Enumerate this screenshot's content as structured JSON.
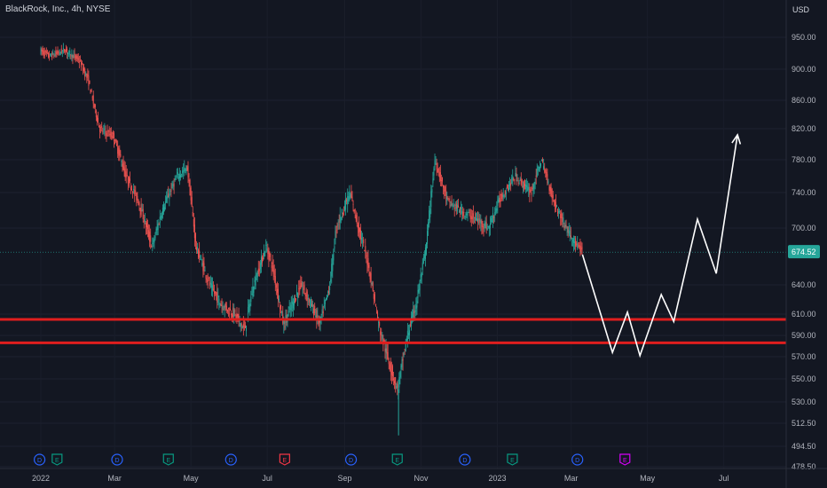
{
  "header": {
    "title": "BlackRock, Inc., 4h, NYSE",
    "currency": "USD"
  },
  "colors": {
    "background": "#131722",
    "up": "#26a69a",
    "down": "#ef5350",
    "support": "#e01e1e",
    "projection": "#ffffff",
    "price_label_bg": "#26a69a",
    "dividend": "#2962ff",
    "earnings": "#089981",
    "earnings_alt": "#f23645",
    "earnings_upcoming": "#d500f9"
  },
  "chart_data": {
    "type": "candlestick",
    "y_axis_labels": [
      "950.00",
      "900.00",
      "860.00",
      "820.00",
      "780.00",
      "740.00",
      "700.00",
      "674.52",
      "640.00",
      "610.00",
      "590.00",
      "570.00",
      "550.00",
      "530.00",
      "512.50",
      "494.50",
      "478.50"
    ],
    "y_ticks": [
      950,
      900,
      860,
      820,
      780,
      740,
      700,
      640,
      610,
      590,
      570,
      550,
      530,
      512.5,
      494.5,
      478.5
    ],
    "x_axis_labels": [
      "2022",
      "Mar",
      "May",
      "Jul",
      "Sep",
      "Nov",
      "2023",
      "Mar",
      "May",
      "Jul"
    ],
    "x_ticks": [
      "2022-01",
      "2022-03",
      "2022-05",
      "2022-07",
      "2022-09",
      "2022-11",
      "2023-01",
      "2023-03",
      "2023-05",
      "2023-07"
    ],
    "last_price": "674.52",
    "support_levels": [
      605,
      583
    ],
    "path": [
      [
        "2021-12-31",
        930
      ],
      [
        "2022-01-08",
        920
      ],
      [
        "2022-01-20",
        930
      ],
      [
        "2022-01-31",
        915
      ],
      [
        "2022-02-08",
        885
      ],
      [
        "2022-02-17",
        820
      ],
      [
        "2022-02-28",
        810
      ],
      [
        "2022-03-10",
        760
      ],
      [
        "2022-03-20",
        730
      ],
      [
        "2022-03-31",
        680
      ],
      [
        "2022-04-08",
        720
      ],
      [
        "2022-04-20",
        760
      ],
      [
        "2022-04-28",
        770
      ],
      [
        "2022-05-05",
        680
      ],
      [
        "2022-05-16",
        640
      ],
      [
        "2022-05-25",
        620
      ],
      [
        "2022-06-05",
        610
      ],
      [
        "2022-06-13",
        595
      ],
      [
        "2022-06-20",
        640
      ],
      [
        "2022-06-30",
        680
      ],
      [
        "2022-07-05",
        660
      ],
      [
        "2022-07-14",
        600
      ],
      [
        "2022-07-28",
        640
      ],
      [
        "2022-08-05",
        620
      ],
      [
        "2022-08-12",
        600
      ],
      [
        "2022-08-20",
        640
      ],
      [
        "2022-08-25",
        700
      ],
      [
        "2022-09-05",
        740
      ],
      [
        "2022-09-12",
        700
      ],
      [
        "2022-09-20",
        660
      ],
      [
        "2022-09-28",
        600
      ],
      [
        "2022-10-05",
        570
      ],
      [
        "2022-10-13",
        540
      ],
      [
        "2022-10-21",
        590
      ],
      [
        "2022-10-28",
        620
      ],
      [
        "2022-11-05",
        680
      ],
      [
        "2022-11-12",
        780
      ],
      [
        "2022-11-22",
        730
      ],
      [
        "2022-12-02",
        720
      ],
      [
        "2022-12-15",
        710
      ],
      [
        "2022-12-25",
        700
      ],
      [
        "2023-01-02",
        730
      ],
      [
        "2023-01-15",
        760
      ],
      [
        "2023-01-28",
        740
      ],
      [
        "2023-02-05",
        780
      ],
      [
        "2023-02-15",
        730
      ],
      [
        "2023-02-25",
        700
      ],
      [
        "2023-03-06",
        680
      ],
      [
        "2023-03-10",
        674.52
      ]
    ],
    "projection": [
      [
        "2023-03-10",
        672
      ],
      [
        "2023-04-03",
        574
      ],
      [
        "2023-04-15",
        612
      ],
      [
        "2023-04-25",
        571
      ],
      [
        "2023-05-12",
        630
      ],
      [
        "2023-05-22",
        603
      ],
      [
        "2023-06-10",
        710
      ],
      [
        "2023-06-25",
        652
      ],
      [
        "2023-07-12",
        812
      ]
    ],
    "events": [
      {
        "kind": "dividend",
        "label": "D",
        "date": "2021-12-31"
      },
      {
        "kind": "earnings",
        "label": "E",
        "date": "2022-01-14"
      },
      {
        "kind": "dividend",
        "label": "D",
        "date": "2022-03-03"
      },
      {
        "kind": "earnings",
        "label": "E",
        "date": "2022-04-13"
      },
      {
        "kind": "dividend",
        "label": "D",
        "date": "2022-06-02"
      },
      {
        "kind": "earnings_alt",
        "label": "E",
        "date": "2022-07-15"
      },
      {
        "kind": "dividend",
        "label": "D",
        "date": "2022-09-06"
      },
      {
        "kind": "earnings",
        "label": "E",
        "date": "2022-10-13"
      },
      {
        "kind": "dividend",
        "label": "D",
        "date": "2022-12-06"
      },
      {
        "kind": "earnings",
        "label": "E",
        "date": "2023-01-13"
      },
      {
        "kind": "dividend",
        "label": "D",
        "date": "2023-03-06"
      },
      {
        "kind": "earnings_upcoming",
        "label": "E",
        "date": "2023-04-13"
      }
    ]
  }
}
